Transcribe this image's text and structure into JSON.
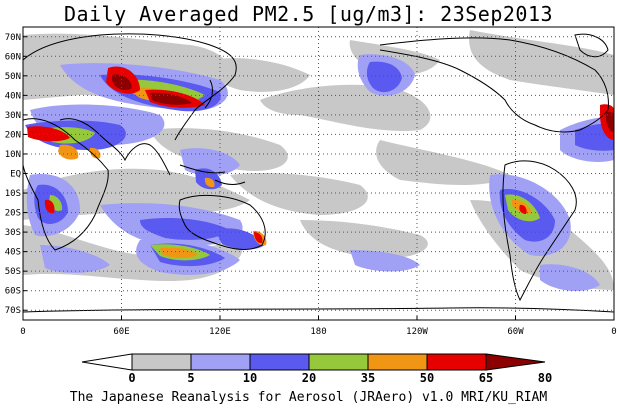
{
  "title": "Daily Averaged PM2.5 [ug/m3]: 23Sep2013",
  "footer": "The Japanese Reanalysis for Aerosol (JRAero) v1.0 MRI/KU_RIAM",
  "map": {
    "lat_range": [
      -75,
      75
    ],
    "lon_range": [
      0,
      360
    ],
    "lat_labels": [
      "70N",
      "60N",
      "50N",
      "40N",
      "30N",
      "20N",
      "10N",
      "EQ",
      "10S",
      "20S",
      "30S",
      "40S",
      "50S",
      "60S",
      "70S"
    ],
    "lat_values": [
      70,
      60,
      50,
      40,
      30,
      20,
      10,
      0,
      -10,
      -20,
      -30,
      -40,
      -50,
      -60,
      -70
    ],
    "lon_labels": [
      "0",
      "60E",
      "120E",
      "180",
      "120W",
      "60W",
      "0"
    ],
    "lon_values": [
      0,
      60,
      120,
      180,
      240,
      300,
      360
    ],
    "grid": "dotted"
  },
  "colorbar": {
    "levels": [
      "0",
      "5",
      "10",
      "20",
      "35",
      "50",
      "65",
      "80"
    ],
    "colors": [
      "#ffffff",
      "#c8c8c8",
      "#a0a0f5",
      "#5a5af0",
      "#96c83c",
      "#f09614",
      "#e60000",
      "#8c0000"
    ]
  }
}
